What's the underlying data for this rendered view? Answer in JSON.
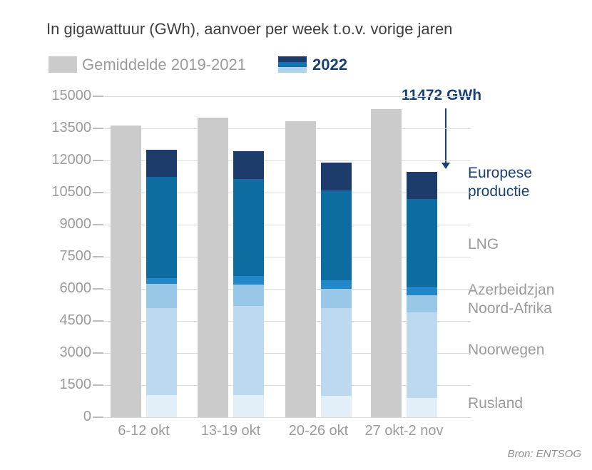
{
  "title": "In gigawattuur (GWh), aanvoer per week t.o.v. vorige jaren",
  "legend": {
    "average_label": "Gemiddelde 2019-2021",
    "year_label": "2022"
  },
  "annotation": {
    "text": "11472 GWh",
    "points_to": "top of 2022 bar for 27 okt-2 nov"
  },
  "source": "Bron: ENTSOG",
  "colors": {
    "title_text": "#404040",
    "axis_text": "#9B9B9B",
    "navy_text": "#1B4077",
    "grid_line": "#DCDCDC",
    "tick_line": "#BDBDBD",
    "avg_bar": "#CBCBCB",
    "source_text": "#8F8F8F",
    "legend_2022_top": "#1D3C6B",
    "legend_2022_mid": "#1473AE",
    "legend_2022_bottom": "#ABD2EE"
  },
  "chart_data": {
    "type": "bar",
    "title": "In gigawattuur (GWh), aanvoer per week t.o.v. vorige jaren",
    "unit": "GWh",
    "categories": [
      "6-12 okt",
      "13-19 okt",
      "20-26 okt",
      "27 okt-2 nov"
    ],
    "ylim": [
      0,
      15000
    ],
    "y_ticks": [
      0,
      1500,
      3000,
      4500,
      6000,
      7500,
      9000,
      10500,
      12000,
      13500,
      15000
    ],
    "grid": true,
    "legend_position": "top",
    "average_series": {
      "name": "Gemiddelde 2019-2021",
      "values": [
        13650,
        14000,
        13850,
        14400
      ],
      "color": "#CBCBCB"
    },
    "stacked_series": [
      {
        "name": "Rusland",
        "values": [
          1050,
          1050,
          1000,
          900
        ],
        "color": "#E2EFF8",
        "label_color": "gray"
      },
      {
        "name": "Noorwegen",
        "values": [
          4050,
          4150,
          4100,
          4000
        ],
        "color": "#BCD9F0",
        "label_color": "gray"
      },
      {
        "name": "Noord-Afrika",
        "values": [
          1150,
          1000,
          900,
          800
        ],
        "color": "#98C7E7",
        "label_color": "gray"
      },
      {
        "name": "Azerbeidzjan",
        "values": [
          250,
          400,
          400,
          400
        ],
        "color": "#2387C8",
        "label_color": "gray"
      },
      {
        "name": "LNG",
        "values": [
          4750,
          4550,
          4200,
          4100
        ],
        "color": "#0D6CA0",
        "label_color": "gray"
      },
      {
        "name": "Europese productie",
        "values": [
          1250,
          1300,
          1300,
          1272
        ],
        "color": "#1D3C6B",
        "label_color": "navy"
      }
    ],
    "totals_2022": [
      12500,
      12450,
      11900,
      11472
    ],
    "annotated_total": 11472
  }
}
